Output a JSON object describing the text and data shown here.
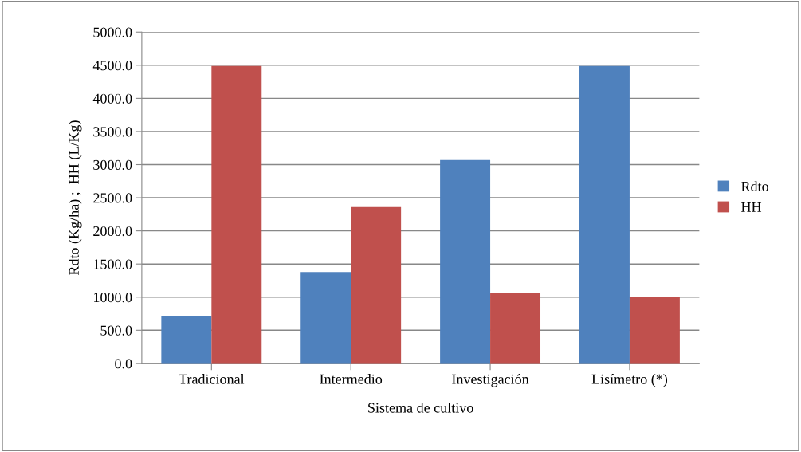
{
  "chart_data": {
    "type": "bar",
    "xlabel": "Sistema de cultivo",
    "ylabel": "Rdto (Kg/ha) ;  HH (L/Kg)",
    "categories": [
      "Tradicional",
      "Intermedio",
      "Investigación",
      "Lisímetro (*)"
    ],
    "series": [
      {
        "name": "Rdto",
        "color": "#4f81bd",
        "values": [
          720,
          1380,
          3070,
          4490
        ]
      },
      {
        "name": "HH",
        "color": "#c0504d",
        "values": [
          4490,
          2360,
          1060,
          1000
        ]
      }
    ],
    "ylim": [
      0,
      5000
    ],
    "yticks": [
      {
        "value": 0,
        "label": "0.0"
      },
      {
        "value": 500,
        "label": "500.0"
      },
      {
        "value": 1000,
        "label": "1000.0"
      },
      {
        "value": 1500,
        "label": "1500.0"
      },
      {
        "value": 2000,
        "label": "2000.0"
      },
      {
        "value": 2500,
        "label": "2500.0"
      },
      {
        "value": 3000,
        "label": "3000.0"
      },
      {
        "value": 3500,
        "label": "3500.0"
      },
      {
        "value": 4000,
        "label": "4000.0"
      },
      {
        "value": 4500,
        "label": "4500.0"
      },
      {
        "value": 5000,
        "label": "5000.0"
      }
    ],
    "grid": "y",
    "legend": "right"
  }
}
